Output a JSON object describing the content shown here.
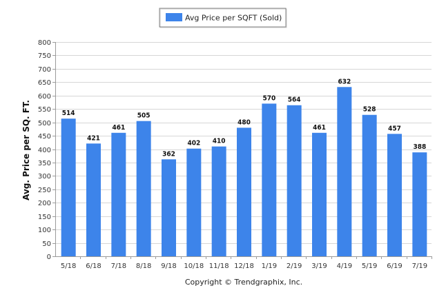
{
  "chart_data": {
    "type": "bar",
    "categories": [
      "5/18",
      "6/18",
      "7/18",
      "8/18",
      "9/18",
      "10/18",
      "11/18",
      "12/18",
      "1/19",
      "2/19",
      "3/19",
      "4/19",
      "5/19",
      "6/19",
      "7/19"
    ],
    "series": [
      {
        "name": "Avg Price per SQFT (Sold)",
        "values": [
          514,
          421,
          461,
          505,
          362,
          402,
          410,
          480,
          570,
          564,
          461,
          632,
          528,
          457,
          388
        ]
      }
    ],
    "ylabel": "Avg. Price per SQ. FT.",
    "xlabel": "",
    "ylim": [
      0,
      800
    ],
    "yticks": [
      0,
      50,
      100,
      150,
      200,
      250,
      300,
      350,
      400,
      450,
      500,
      550,
      600,
      650,
      700,
      750,
      800
    ],
    "grid": true,
    "legend": "top-center",
    "bar_color": "#3d84ea",
    "footer": "Copyright © Trendgraphix, Inc."
  }
}
